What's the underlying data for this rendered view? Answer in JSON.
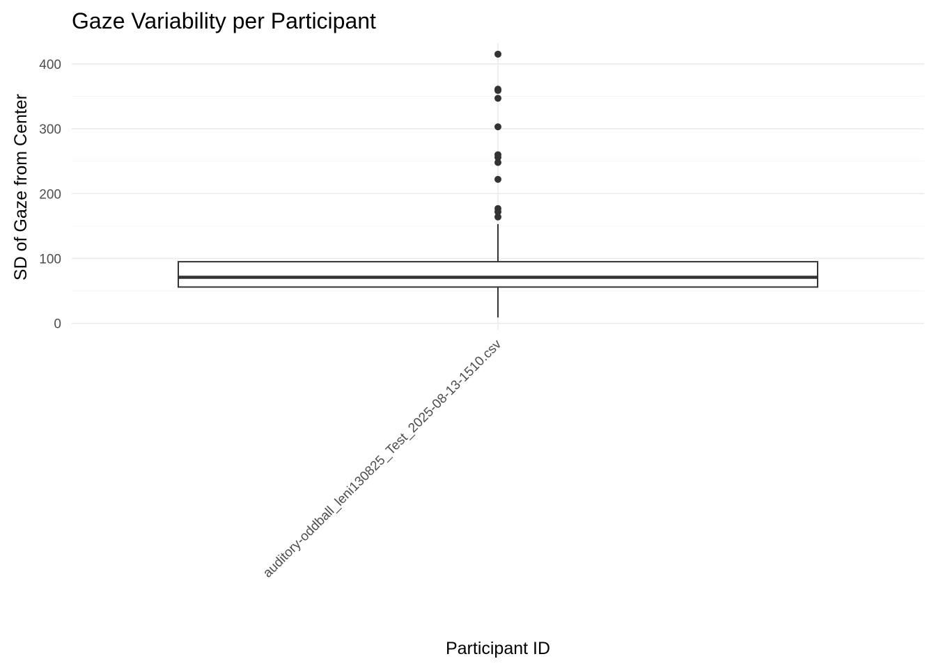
{
  "chart_data": {
    "type": "boxplot",
    "title": "Gaze Variability per Participant",
    "xlabel": "Participant ID",
    "ylabel": "SD of Gaze from Center",
    "ylim": [
      -10,
      432
    ],
    "yticks": [
      0,
      100,
      200,
      300,
      400
    ],
    "grid": true,
    "categories": [
      "auditory-oddball_leni130825_Test_2025-08-13-1510.csv"
    ],
    "boxes": [
      {
        "category": "auditory-oddball_leni130825_Test_2025-08-13-1510.csv",
        "whisker_low": 9,
        "q1": 56,
        "median": 71,
        "q3": 95,
        "whisker_high": 153,
        "outliers": [
          164,
          172,
          177,
          222,
          248,
          256,
          260,
          303,
          347,
          359,
          361,
          415
        ]
      }
    ]
  }
}
